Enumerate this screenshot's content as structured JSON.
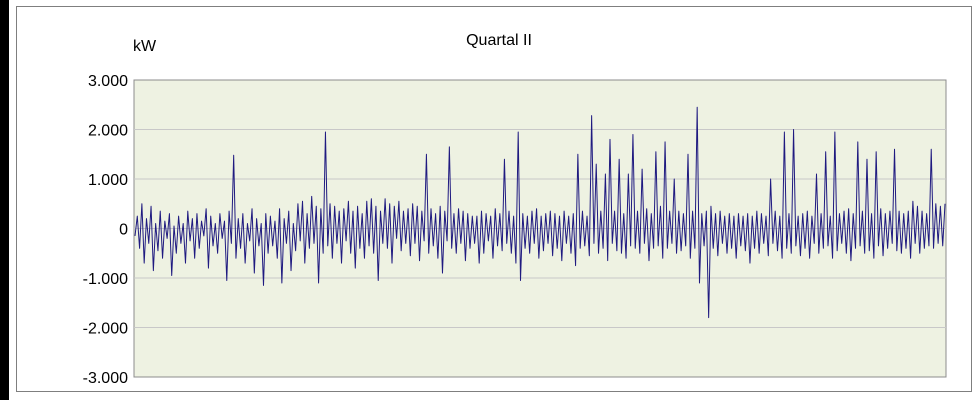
{
  "chart_data": {
    "type": "line",
    "title": "Quartal II",
    "ylabel": "kW",
    "xlabel": "",
    "ylim": [
      -3000,
      3000
    ],
    "yticks": [
      {
        "value": 3000,
        "label": "3.000"
      },
      {
        "value": 2000,
        "label": "2.000"
      },
      {
        "value": 1000,
        "label": "1.000"
      },
      {
        "value": 0,
        "label": "0"
      },
      {
        "value": -1000,
        "label": "-1.000"
      },
      {
        "value": -2000,
        "label": "-2.000"
      },
      {
        "value": -3000,
        "label": "-3.000"
      }
    ],
    "grid": true,
    "plot_background": "#eef2e2",
    "grid_color": "#c8c8c8",
    "series": [
      {
        "color": "#1f1a80",
        "values": [
          -150,
          250,
          -400,
          500,
          -700,
          200,
          -300,
          450,
          -850,
          100,
          -450,
          350,
          -600,
          150,
          -200,
          300,
          -950,
          50,
          -500,
          250,
          -300,
          100,
          -700,
          350,
          -250,
          200,
          -600,
          300,
          -400,
          150,
          -150,
          400,
          -800,
          250,
          -350,
          100,
          -500,
          300,
          -200,
          150,
          -1050,
          350,
          -300,
          1480,
          -600,
          200,
          -400,
          300,
          -700,
          100,
          -250,
          400,
          -900,
          200,
          -350,
          100,
          -1150,
          300,
          -500,
          250,
          -350,
          150,
          -600,
          400,
          -1100,
          200,
          -300,
          350,
          -850,
          100,
          -450,
          500,
          -250,
          550,
          -700,
          300,
          -400,
          650,
          -300,
          450,
          -1100,
          400,
          -500,
          1950,
          -350,
          500,
          -600,
          450,
          -300,
          350,
          -700,
          400,
          -250,
          550,
          -500,
          350,
          -800,
          450,
          -400,
          300,
          -600,
          550,
          -350,
          600,
          -500,
          450,
          -1050,
          350,
          -300,
          600,
          -400,
          500,
          -700,
          450,
          -200,
          550,
          -450,
          350,
          -300,
          400,
          -550,
          500,
          -300,
          450,
          -650,
          350,
          -250,
          1500,
          -500,
          400,
          -350,
          300,
          -600,
          450,
          -900,
          350,
          -250,
          1650,
          -400,
          300,
          -500,
          400,
          -300,
          350,
          -650,
          300,
          -400,
          250,
          -300,
          250,
          -700,
          350,
          -500,
          300,
          -250,
          250,
          -600,
          400,
          -350,
          300,
          -450,
          1400,
          -300,
          350,
          -500,
          250,
          -700,
          1950,
          -1050,
          300,
          -400,
          250,
          -500,
          350,
          -300,
          400,
          -600,
          250,
          -450,
          300,
          -300,
          350,
          -550,
          300,
          -400,
          250,
          -650,
          350,
          -300,
          250,
          -500,
          300,
          -750,
          1500,
          -400,
          350,
          -350,
          250,
          -550,
          2280,
          -300,
          1300,
          -500,
          350,
          -400,
          1100,
          -650,
          1800,
          -300,
          350,
          -450,
          1400,
          -500,
          300,
          -600,
          1100,
          -350,
          1900,
          -400,
          350,
          -500,
          1200,
          -300,
          400,
          -650,
          300,
          -400,
          1550,
          -350,
          450,
          -600,
          1750,
          -400,
          350,
          -300,
          1000,
          -500,
          350,
          -450,
          300,
          -350,
          1500,
          -600,
          350,
          -400,
          2450,
          -1100,
          300,
          -350,
          350,
          -1800,
          450,
          -400,
          300,
          -550,
          350,
          -300,
          250,
          -500,
          300,
          -400,
          250,
          -600,
          300,
          -350,
          250,
          -450,
          300,
          -700,
          250,
          -400,
          350,
          -500,
          300,
          -300,
          250,
          -550,
          1000,
          -300,
          350,
          -450,
          250,
          -600,
          1950,
          -400,
          300,
          -500,
          2000,
          -350,
          250,
          -550,
          300,
          -400,
          350,
          -600,
          250,
          -300,
          1100,
          -500,
          300,
          -400,
          1550,
          -350,
          250,
          -600,
          1950,
          -450,
          300,
          -300,
          350,
          -500,
          400,
          -650,
          300,
          -400,
          1750,
          -350,
          350,
          -500,
          1400,
          -450,
          300,
          -600,
          1550,
          -350,
          400,
          -550,
          300,
          -400,
          350,
          -300,
          1600,
          -450,
          350,
          -500,
          300,
          -400,
          350,
          -600,
          550,
          -300,
          450,
          -500,
          350,
          -400,
          300,
          -350,
          1600,
          -400,
          500,
          -300,
          450,
          -350,
          500
        ]
      }
    ]
  }
}
